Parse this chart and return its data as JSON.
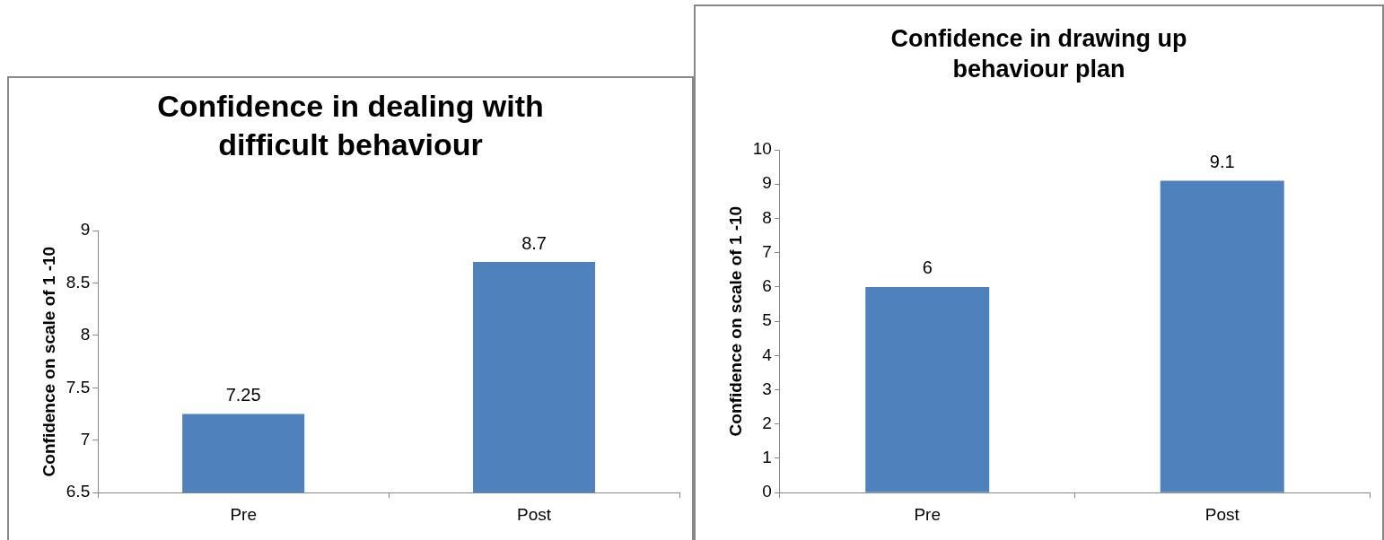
{
  "chart_data": [
    {
      "type": "bar",
      "title": "Confidence in dealing with difficult behaviour",
      "ylabel": "Confidence on scale of 1 -10",
      "categories": [
        "Pre",
        "Post"
      ],
      "values": [
        7.25,
        8.7
      ],
      "color": "#4f81bd",
      "ylim": [
        6.5,
        9
      ],
      "yticks": [
        6.5,
        7,
        7.5,
        8,
        8.5,
        9
      ],
      "data_labels": true,
      "legend": false,
      "grid": false
    },
    {
      "type": "bar",
      "title": "Confidence in drawing up behaviour plan",
      "ylabel": "Confidence on scale of 1 -10",
      "categories": [
        "Pre",
        "Post"
      ],
      "values": [
        6,
        9.1
      ],
      "color": "#4f81bd",
      "ylim": [
        0,
        10
      ],
      "yticks": [
        0,
        1,
        2,
        3,
        4,
        5,
        6,
        7,
        8,
        9,
        10
      ],
      "data_labels": true,
      "legend": false,
      "grid": false
    }
  ]
}
